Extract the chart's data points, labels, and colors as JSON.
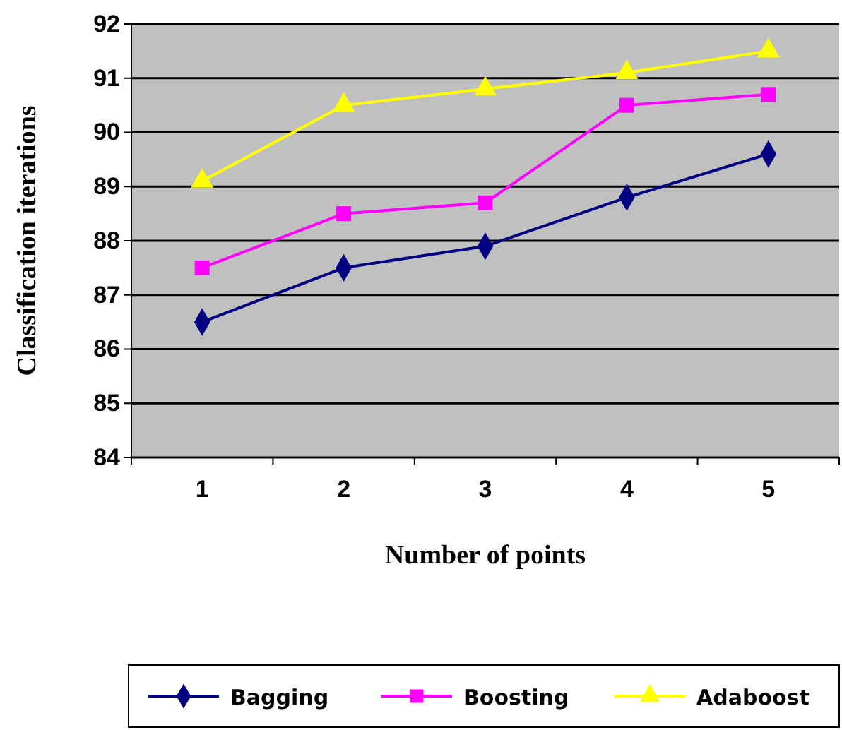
{
  "chart_data": {
    "type": "line",
    "xlabel": "Number of points",
    "ylabel": "Classification iterations",
    "categories": [
      "1",
      "2",
      "3",
      "4",
      "5"
    ],
    "series": [
      {
        "name": "Bagging",
        "color": "#000080",
        "marker": "diamond",
        "values": [
          86.5,
          87.5,
          87.9,
          88.8,
          89.6
        ]
      },
      {
        "name": "Boosting",
        "color": "#ff00ff",
        "marker": "square",
        "values": [
          87.5,
          88.5,
          88.7,
          90.5,
          90.7
        ]
      },
      {
        "name": "Adaboost",
        "color": "#ffff00",
        "marker": "triangle",
        "values": [
          89.1,
          90.5,
          90.8,
          91.1,
          91.5
        ]
      }
    ],
    "ylim": [
      84,
      92
    ],
    "yticks": [
      84,
      85,
      86,
      87,
      88,
      89,
      90,
      91,
      92
    ],
    "grid": "y",
    "legend": "bottom"
  }
}
